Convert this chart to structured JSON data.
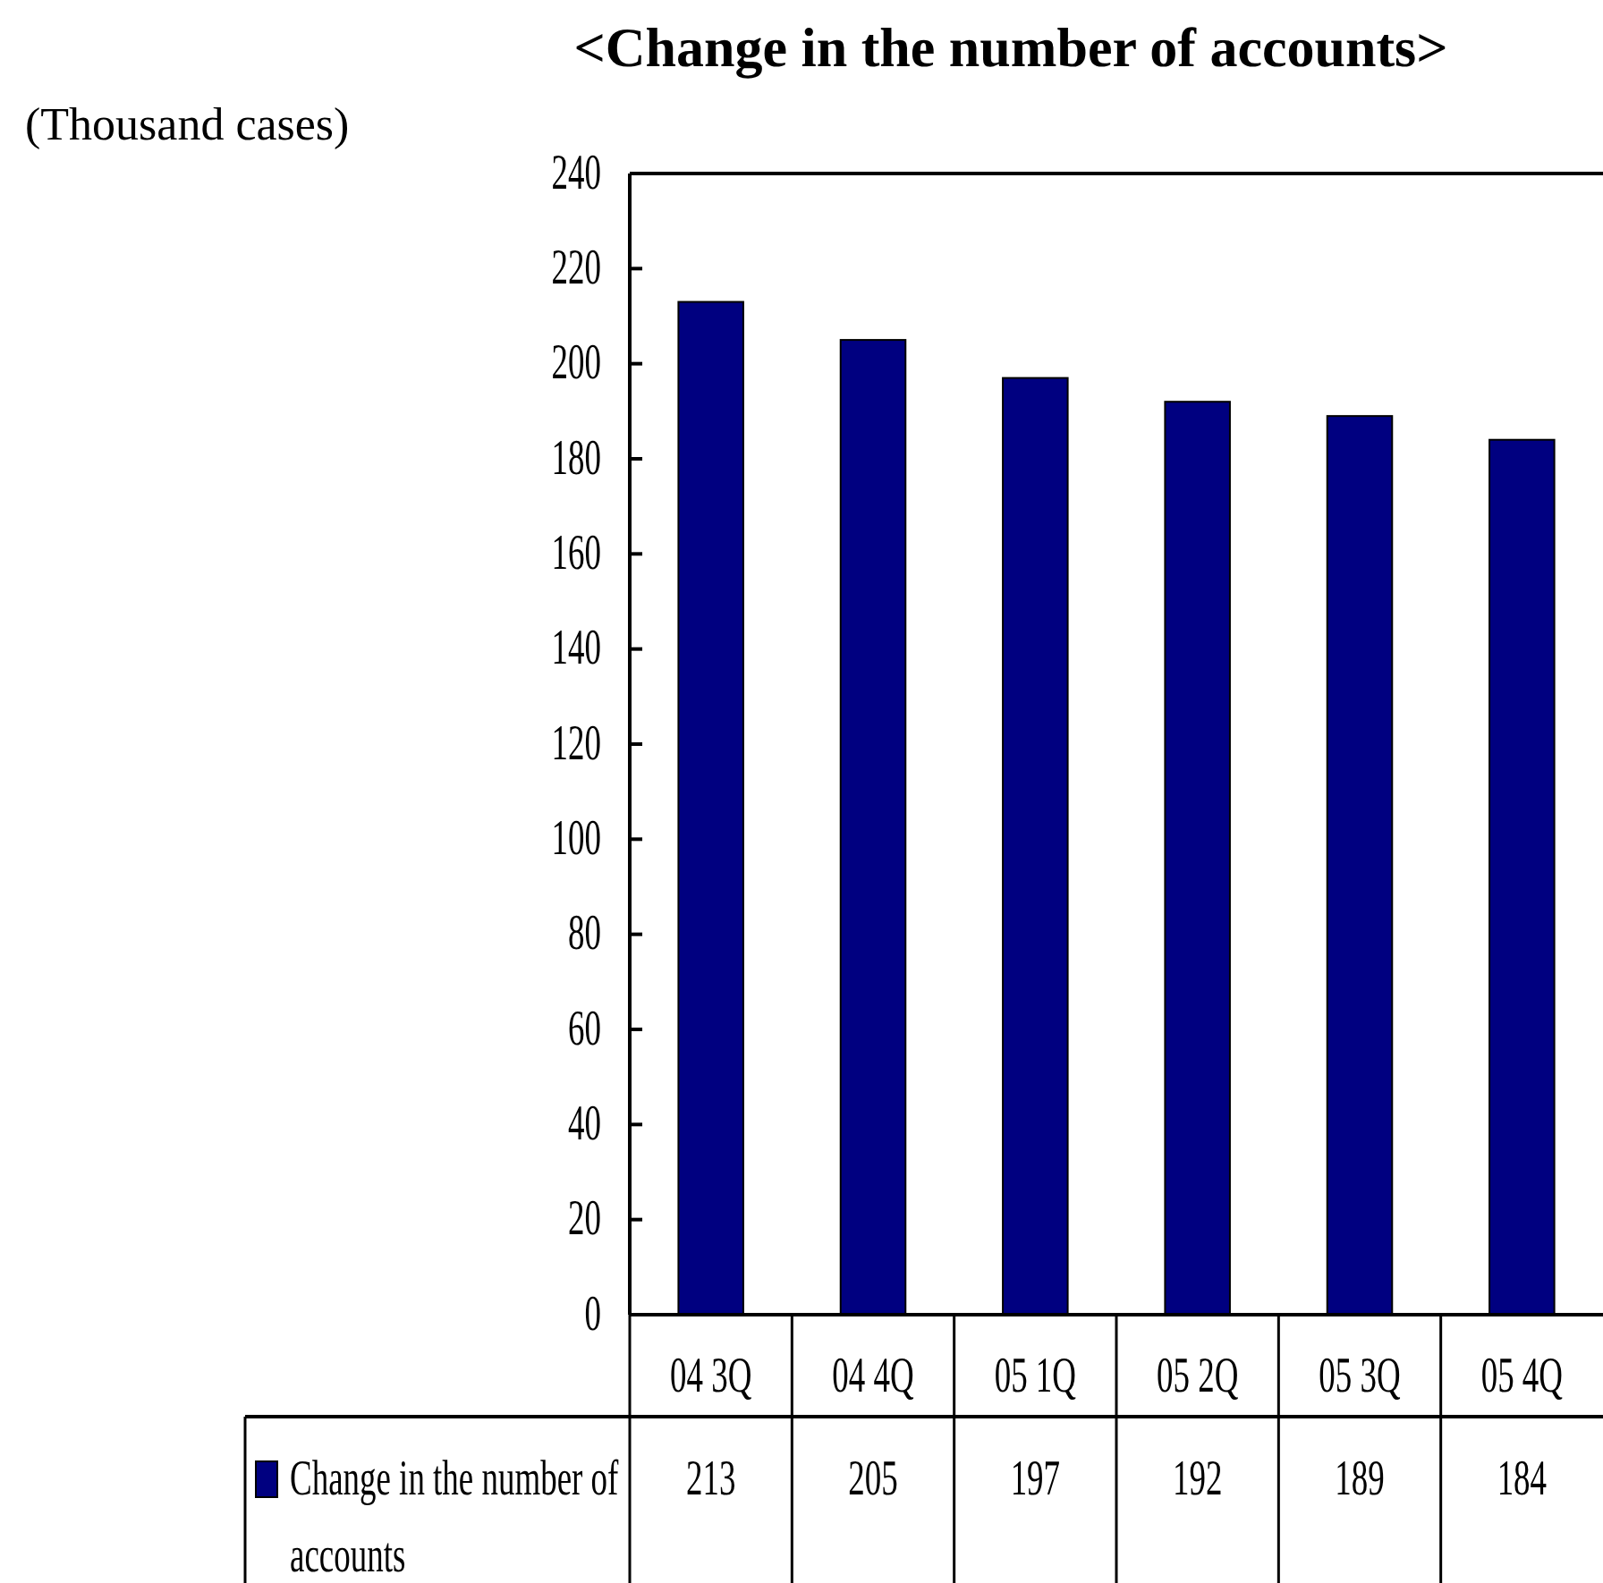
{
  "chart_data": {
    "type": "bar",
    "title": "<Change in the number of accounts>",
    "annotations": [
      "(Thousand cases)"
    ],
    "categories": [
      "04 3Q",
      "04 4Q",
      "05 1Q",
      "05 2Q",
      "05 3Q",
      "05 4Q"
    ],
    "series": [
      {
        "name": "Change in the number of accounts",
        "color": "#000080",
        "values": [
          213,
          205,
          197,
          192,
          189,
          184
        ]
      }
    ],
    "ylim": [
      0,
      240
    ],
    "yticks": [
      0,
      20,
      40,
      60,
      80,
      100,
      120,
      140,
      160,
      180,
      200,
      220,
      240
    ],
    "data_labels": true,
    "legend": "bottom left"
  }
}
